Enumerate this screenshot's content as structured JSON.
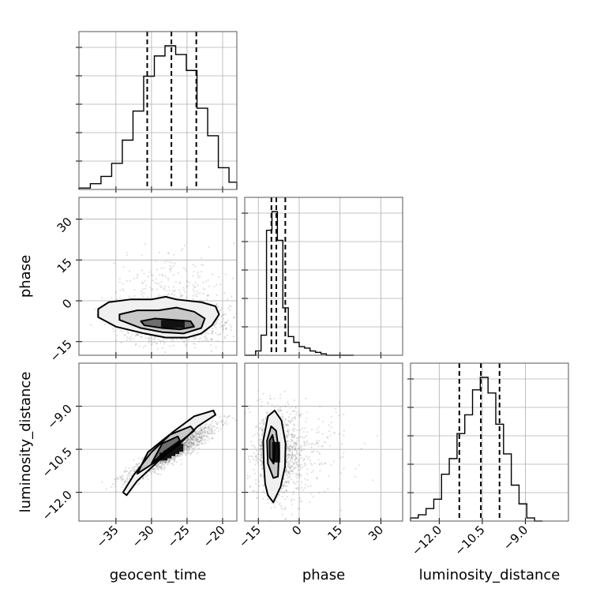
{
  "chart_data": {
    "type": "corner",
    "parameters": [
      "geocent_time",
      "phase",
      "luminosity_distance"
    ],
    "grid": true,
    "axes": {
      "geocent_time": {
        "range": [
          -40.2,
          -18.0
        ],
        "ticks": [
          -35,
          -30,
          -25,
          -20
        ],
        "tick_labels": [
          "−35",
          "−30",
          "−25",
          "−20"
        ]
      },
      "phase": {
        "range": [
          -20,
          38
        ],
        "ticks": [
          -15,
          0,
          15,
          30
        ],
        "tick_labels": [
          "−15",
          "0",
          "15",
          "30"
        ]
      },
      "luminosity_distance": {
        "range": [
          -13.0,
          -7.5
        ],
        "ticks": [
          -12.0,
          -10.5,
          -9.0
        ],
        "tick_labels": [
          "−12.0",
          "−10.5",
          "−9.0"
        ]
      }
    },
    "marginals": {
      "geocent_time": {
        "bin_edges": [
          -40.2,
          -38.6,
          -37.1,
          -35.6,
          -34.1,
          -32.6,
          -31.1,
          -29.6,
          -28.1,
          -26.6,
          -25.1,
          -23.6,
          -22.1,
          -20.6,
          -19.1,
          -18.0
        ],
        "counts": [
          1,
          4,
          9,
          18,
          34,
          54,
          78,
          92,
          99,
          93,
          82,
          56,
          37,
          15,
          5
        ],
        "quantiles": [
          -30.6,
          -27.2,
          -23.7
        ]
      },
      "phase": {
        "bin_edges": [
          -20,
          -18,
          -16,
          -14,
          -12,
          -10,
          -8,
          -6,
          -4,
          -2,
          0,
          2,
          4,
          6,
          8,
          10,
          12,
          14,
          16,
          20
        ],
        "counts": [
          0,
          0,
          3,
          14,
          87,
          100,
          80,
          33,
          13,
          9,
          6,
          5,
          3,
          2,
          1,
          0,
          0,
          0,
          0
        ],
        "quantiles": [
          -10.2,
          -8.4,
          -5.1
        ]
      },
      "luminosity_distance": {
        "bin_edges": [
          -13.0,
          -12.73,
          -12.46,
          -12.19,
          -11.92,
          -11.65,
          -11.38,
          -11.11,
          -10.84,
          -10.57,
          -10.3,
          -10.03,
          -9.76,
          -9.49,
          -9.22,
          -8.95,
          -8.68,
          -8.41
        ],
        "counts": [
          2,
          4,
          8,
          14,
          30,
          40,
          56,
          68,
          84,
          92,
          82,
          62,
          43,
          23,
          11,
          2,
          0
        ],
        "quantiles": [
          -11.3,
          -10.55,
          -9.9
        ]
      }
    },
    "pairs": [
      {
        "x": "geocent_time",
        "y": "phase",
        "center": [
          -27.0,
          -8.5
        ],
        "contours": [
          [
            [
              -37.5,
              -3
            ],
            [
              -36,
              -0.5
            ],
            [
              -33,
              0.5
            ],
            [
              -30,
              0.5
            ],
            [
              -28,
              1.5
            ],
            [
              -26.5,
              0.5
            ],
            [
              -23,
              -0.5
            ],
            [
              -21,
              -2
            ],
            [
              -20.5,
              -5
            ],
            [
              -21.5,
              -9
            ],
            [
              -23,
              -12
            ],
            [
              -25,
              -13.5
            ],
            [
              -28,
              -13.5
            ],
            [
              -31,
              -12
            ],
            [
              -35,
              -9.5
            ],
            [
              -37.5,
              -6
            ]
          ],
          [
            [
              -34.5,
              -5
            ],
            [
              -32,
              -3.5
            ],
            [
              -29,
              -3.5
            ],
            [
              -26.5,
              -2.5
            ],
            [
              -24,
              -4
            ],
            [
              -22.5,
              -6.5
            ],
            [
              -23,
              -10
            ],
            [
              -25.5,
              -12
            ],
            [
              -28.5,
              -11.5
            ],
            [
              -31.5,
              -10
            ],
            [
              -34.5,
              -7
            ]
          ],
          [
            [
              -31.5,
              -7.5
            ],
            [
              -29.5,
              -6.5
            ],
            [
              -27,
              -7
            ],
            [
              -24.5,
              -7.5
            ],
            [
              -24,
              -9.5
            ],
            [
              -26,
              -10.5
            ],
            [
              -28.5,
              -10
            ],
            [
              -31,
              -9
            ]
          ]
        ]
      },
      {
        "x": "geocent_time",
        "y": "luminosity_distance",
        "center": [
          -27.2,
          -10.6
        ],
        "slope": 0.1385,
        "contours": [
          [
            [
              -34,
              -12.0
            ],
            [
              -33.5,
              -12.1
            ],
            [
              -32,
              -11.6
            ],
            [
              -29,
              -10.9
            ],
            [
              -26,
              -10.3
            ],
            [
              -23.5,
              -9.7
            ],
            [
              -21,
              -9.3
            ],
            [
              -21.3,
              -9.15
            ],
            [
              -24,
              -9.35
            ],
            [
              -27,
              -9.9
            ],
            [
              -30,
              -10.6
            ],
            [
              -32.5,
              -11.4
            ]
          ],
          [
            [
              -32,
              -11.35
            ],
            [
              -29.5,
              -10.95
            ],
            [
              -26.5,
              -10.35
            ],
            [
              -24,
              -9.85
            ],
            [
              -24.5,
              -9.7
            ],
            [
              -27.5,
              -10.0
            ],
            [
              -30.5,
              -10.6
            ]
          ],
          [
            [
              -30,
              -11.0
            ],
            [
              -28,
              -10.55
            ],
            [
              -26,
              -10.2
            ],
            [
              -26.3,
              -10.05
            ],
            [
              -28.5,
              -10.3
            ]
          ]
        ]
      },
      {
        "x": "phase",
        "y": "luminosity_distance",
        "center": [
          -8.5,
          -10.6
        ],
        "contours": [
          [
            [
              -12.5,
              -11.7
            ],
            [
              -13,
              -11.0
            ],
            [
              -13.2,
              -10.2
            ],
            [
              -11.5,
              -9.35
            ],
            [
              -9,
              -9.15
            ],
            [
              -6.5,
              -9.5
            ],
            [
              -5,
              -10.3
            ],
            [
              -5.2,
              -11.1
            ],
            [
              -6.8,
              -11.8
            ],
            [
              -9.5,
              -12.35
            ],
            [
              -11.5,
              -12.1
            ]
          ],
          [
            [
              -11.5,
              -11.0
            ],
            [
              -11.8,
              -10.2
            ],
            [
              -10.3,
              -9.7
            ],
            [
              -8.5,
              -9.85
            ],
            [
              -7.4,
              -10.6
            ],
            [
              -7.8,
              -11.45
            ],
            [
              -9.5,
              -11.5
            ]
          ],
          [
            [
              -10.8,
              -10.8
            ],
            [
              -10.9,
              -10.2
            ],
            [
              -9.8,
              -10.0
            ],
            [
              -9.0,
              -10.4
            ],
            [
              -9.4,
              -11.0
            ]
          ]
        ]
      }
    ]
  }
}
